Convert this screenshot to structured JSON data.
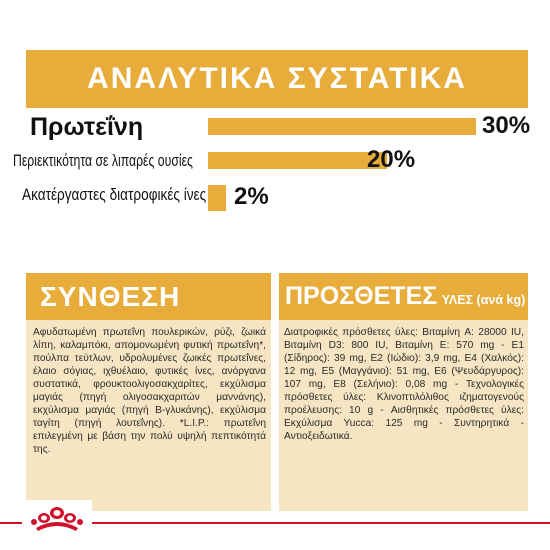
{
  "header": {
    "title": "ΑΝΑΛΥΤΙΚΑ ΣΥΣΤΑΤΙΚΑ"
  },
  "analysis": [
    {
      "label": "Πρωτεΐνη",
      "value_text": "30%",
      "value": 30
    },
    {
      "label": "Περιεκτικότητα σε λιπαρές ουσίες",
      "value_text": "20%",
      "value": 20
    },
    {
      "label": "Ακατέργαστες διατροφικές ίνες",
      "value_text": "2%",
      "value": 2
    }
  ],
  "composition": {
    "title": "ΣΥΝΘΕΣΗ",
    "text": "Αφυδατωμένη πρωτεΐνη πουλερικών, ρύζι, ζωικά λίπη, καλαμπόκι, απομονωμένη φυτική πρωτεΐνη*, πούλπα τεύτλων, υδρολυμένες ζωικές πρωτεΐνες, έλαιο σόγιας, ιχθυέλαιο, φυτικές ίνες, ανόργανα συστατικά, φρουκτοολιγοσακχαρίτες, εκχύλισμα μαγιάς (πηγή ολιγοσακχαριτών μαννάνης), εκχύλισμα μαγιάς (πηγή Β-γλυκάνης), εκχύλισμα ταγίτη (πηγή λουτεΐνης). *L.I.P.: πρωτεΐνη επιλεγμένη με βάση την πολύ υψηλή πεπτικότητά της."
  },
  "additives": {
    "title": "ΠΡΟΣΘΕΤΕΣ",
    "title_suffix": "ΥΛΕΣ (ανά kg)",
    "text": "Διατροφικές πρόσθετες ύλες: Βιταμίνη A: 28000 IU, Βιταμίνη D3: 800 IU, Βιταμίνη E: 570 mg - E1 (Σίδηρος): 39 mg, E2 (Ιώδιο): 3,9 mg, E4 (Χαλκός): 12 mg, E5 (Μαγγάνιο): 51 mg, E6 (Ψευδάργυρος): 107 mg, E8 (Σελήνιο): 0,08 mg - Τεχνολογικές πρόσθετες ύλες: Κλινοπτιλόλιθος ιζηματογενούς προέλευσης: 10 g - Αισθητικές πρόσθετες ύλες: Εκχύλισμα Yucca: 125 mg - Συντηρητικά - Αντιοξειδωτικά."
  },
  "colors": {
    "accent": "#e7ac3a",
    "panel": "#f5e5c3",
    "brand_red": "#d0112b"
  },
  "footer": {
    "logo_icon": "royal-canin-crown-icon"
  }
}
